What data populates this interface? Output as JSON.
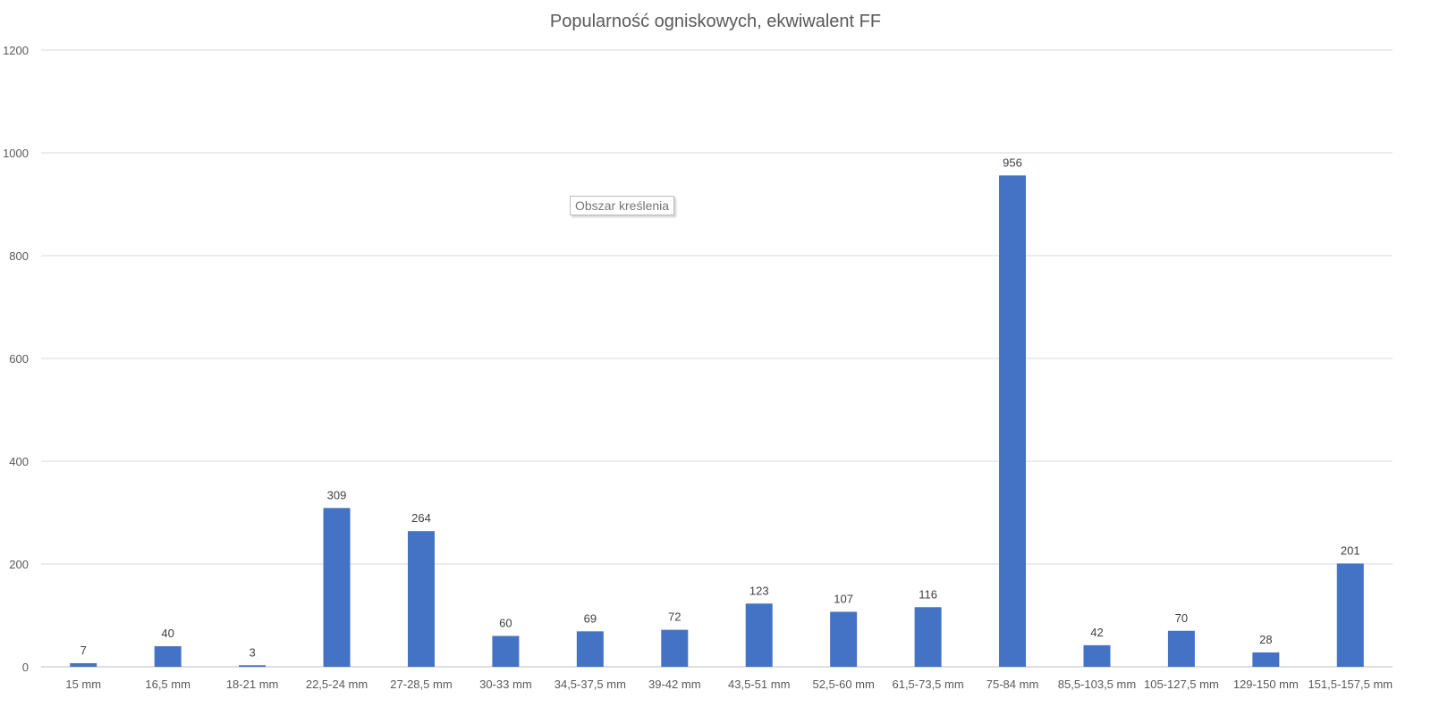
{
  "tooltip": "Obszar kreślenia",
  "colors": {
    "bar": "#4472C4"
  },
  "chart_data": {
    "type": "bar",
    "title": "Popularność ogniskowych, ekwiwalent FF",
    "xlabel": "",
    "ylabel": "",
    "ylim": [
      0,
      1200
    ],
    "yticks": [
      0,
      200,
      400,
      600,
      800,
      1000,
      1200
    ],
    "grid": true,
    "legend": "none",
    "categories": [
      "15 mm",
      "16,5 mm",
      "18-21 mm",
      "22,5-24 mm",
      "27-28,5 mm",
      "30-33 mm",
      "34,5-37,5 mm",
      "39-42 mm",
      "43,5-51 mm",
      "52,5-60 mm",
      "61,5-73,5 mm",
      "75-84 mm",
      "85,5-103,5 mm",
      "105-127,5 mm",
      "129-150 mm",
      "151,5-157,5 mm"
    ],
    "values": [
      7,
      40,
      3,
      309,
      264,
      60,
      69,
      72,
      123,
      107,
      116,
      956,
      42,
      70,
      28,
      201
    ]
  }
}
